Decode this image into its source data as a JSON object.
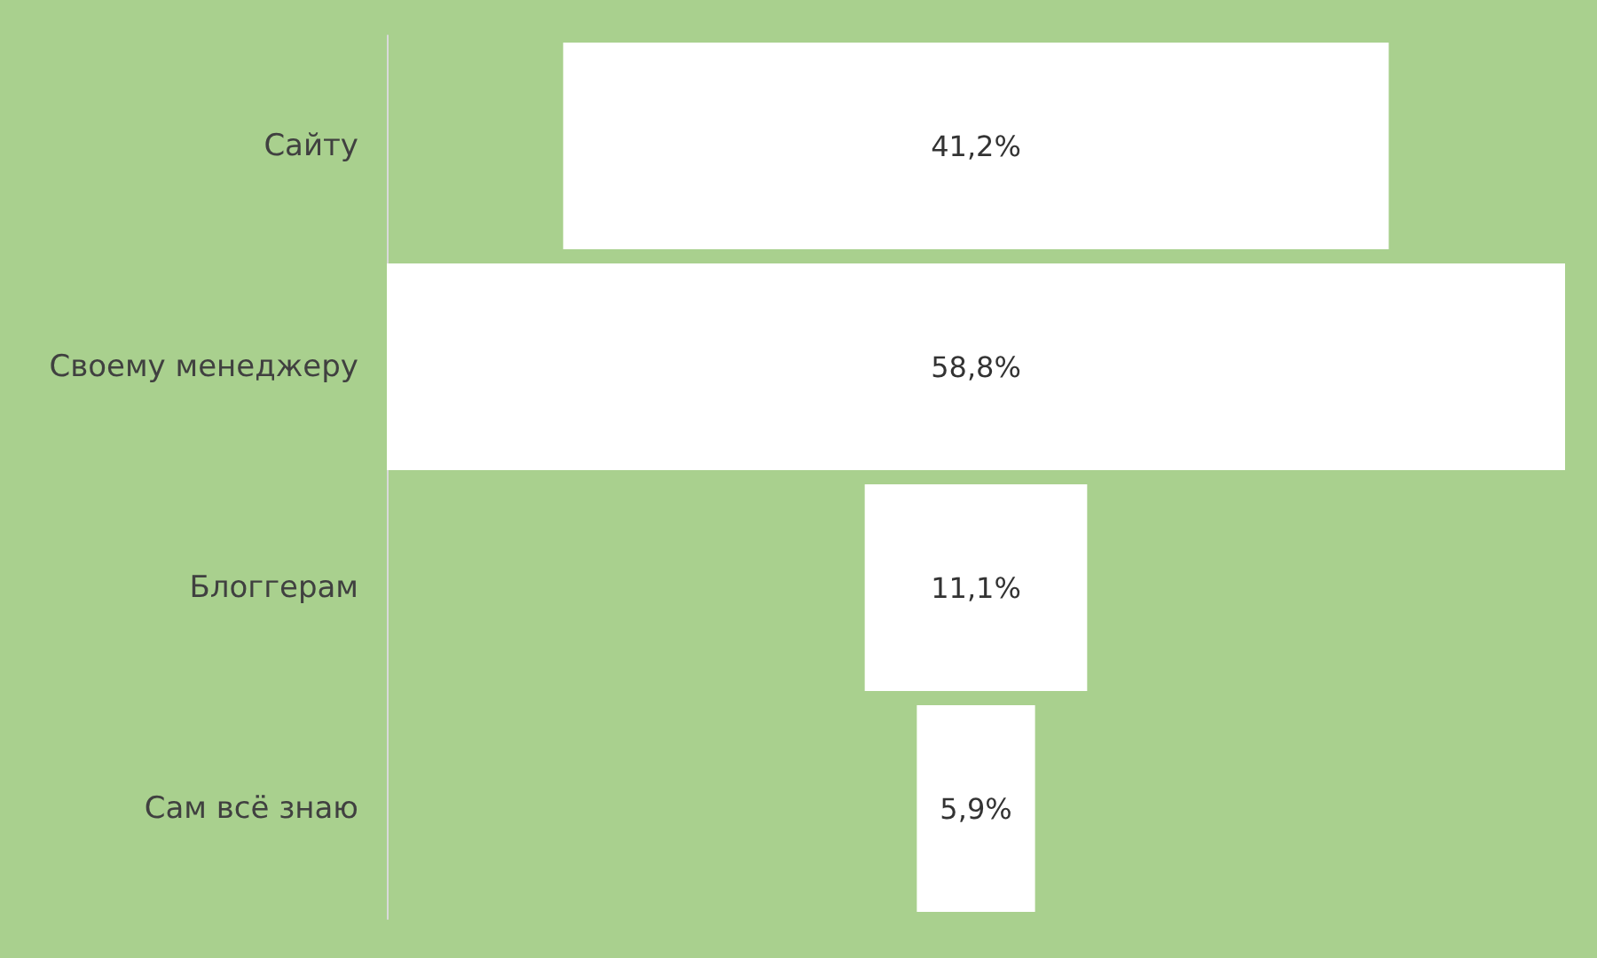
{
  "chart_data": {
    "type": "other",
    "categories": [
      "Сайту",
      "Своему менеджеру",
      "Блоггерам",
      "Сам всё знаю"
    ],
    "values": [
      41.2,
      58.8,
      11.1,
      5.9
    ],
    "value_labels": [
      "41,2%",
      "58,8%",
      "11,1%",
      "5,9%"
    ],
    "color": "#ffffff"
  }
}
